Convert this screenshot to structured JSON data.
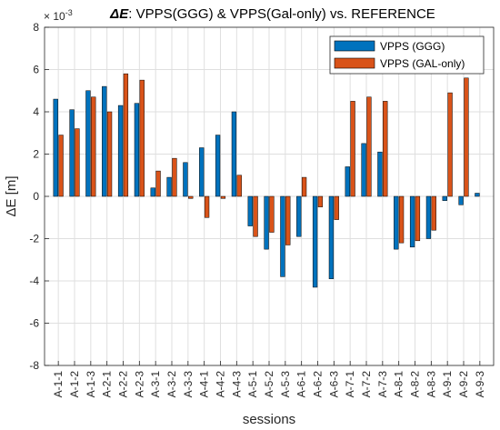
{
  "chart_data": {
    "type": "bar",
    "title_prefix": "ΔE",
    "title_rest": ": VPPS(GGG) & VPPS(Gal-only) vs. REFERENCE",
    "xlabel": "sessions",
    "ylabel": "ΔE [m]",
    "exponent_label": "× 10",
    "exponent_power": "-3",
    "ylim": [
      -8,
      8
    ],
    "yticks": [
      -8,
      -6,
      -4,
      -2,
      0,
      2,
      4,
      6,
      8
    ],
    "grid": true,
    "legend_position": "top-right",
    "categories": [
      "A-1-1",
      "A-1-2",
      "A-1-3",
      "A-2-1",
      "A-2-2",
      "A-2-3",
      "A-3-1",
      "A-3-2",
      "A-3-3",
      "A-4-1",
      "A-4-2",
      "A-4-3",
      "A-5-1",
      "A-5-2",
      "A-5-3",
      "A-6-1",
      "A-6-2",
      "A-6-3",
      "A-7-1",
      "A-7-2",
      "A-7-3",
      "A-8-1",
      "A-8-2",
      "A-8-3",
      "A-9-1",
      "A-9-2",
      "A-9-3"
    ],
    "series": [
      {
        "name": "VPPS (GGG)",
        "color": "#0072BD",
        "values": [
          4.6,
          4.1,
          5.0,
          5.2,
          4.3,
          4.4,
          0.4,
          0.9,
          1.6,
          2.3,
          2.9,
          4.0,
          -1.4,
          -2.5,
          -3.8,
          -1.9,
          -4.3,
          -3.9,
          1.4,
          2.5,
          2.1,
          -2.5,
          -2.4,
          -2.0,
          -0.2,
          -0.4,
          0.15
        ]
      },
      {
        "name": "VPPS (GAL-only)",
        "color": "#D95319",
        "values": [
          2.9,
          3.2,
          4.7,
          4.0,
          5.8,
          5.5,
          1.2,
          1.8,
          -0.1,
          -1.0,
          -0.1,
          1.0,
          -1.9,
          -1.7,
          -2.3,
          0.9,
          -0.5,
          -1.1,
          4.5,
          4.7,
          4.5,
          -2.2,
          -2.1,
          -1.6,
          4.9,
          5.6,
          0.0
        ]
      }
    ]
  }
}
